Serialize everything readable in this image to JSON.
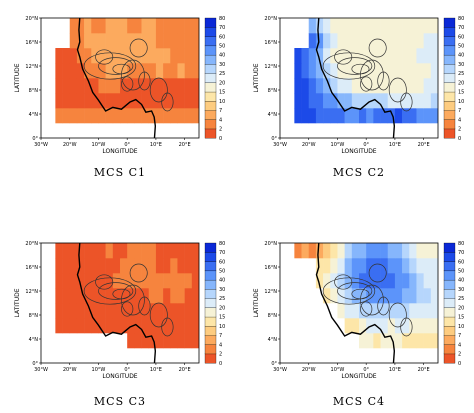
{
  "chart_data": [
    {
      "type": "heatmap",
      "title": "MCS C1",
      "xlabel": "LONGITUDE",
      "ylabel": "LATITUDE",
      "xlim": [
        -30,
        25
      ],
      "ylim": [
        0,
        20
      ],
      "x_ticks": [
        "30°W",
        "20°W",
        "10°W",
        "0°",
        "10°E",
        "20°E"
      ],
      "y_ticks": [
        "0°",
        "4°N",
        "8°N",
        "12°N",
        "16°N",
        "20°N"
      ],
      "colorbar_levels": [
        0,
        2,
        4,
        7,
        10,
        15,
        20,
        25,
        30,
        40,
        50,
        60,
        70,
        80
      ],
      "grid_lon0": -25,
      "grid_lat0": 2.5,
      "grid_dlon": 2.5,
      "grid_dlat": 2.5,
      "grid": [
        [
          11,
          11,
          11,
          11,
          11,
          11,
          11,
          11,
          11,
          11,
          11,
          11,
          11,
          11,
          11,
          11,
          11,
          11,
          11,
          11,
          11,
          11
        ],
        [
          12,
          12,
          12,
          12,
          12,
          12,
          12,
          12,
          12,
          12,
          12,
          12,
          12,
          12,
          12,
          12,
          12,
          12,
          12,
          12,
          12,
          12
        ],
        [
          12,
          12,
          12,
          12,
          12,
          12,
          11,
          11,
          11,
          12,
          12,
          12,
          12,
          12,
          12,
          12,
          12,
          12,
          12,
          12,
          12,
          12
        ],
        [
          12,
          12,
          12,
          12,
          11,
          11,
          11,
          10,
          10,
          10,
          11,
          11,
          11,
          11,
          10,
          11,
          11,
          10,
          11,
          11,
          11,
          11
        ],
        [
          12,
          12,
          12,
          11,
          11,
          10,
          10,
          10,
          10,
          10,
          10,
          10,
          10,
          10,
          10,
          10,
          11,
          11,
          11,
          11,
          11,
          11
        ],
        [
          null,
          null,
          11,
          11,
          10,
          10,
          10,
          10,
          10,
          10,
          10,
          10,
          10,
          10,
          11,
          11,
          11,
          11,
          11,
          11,
          11,
          11
        ],
        [
          null,
          null,
          11,
          11,
          10,
          11,
          11,
          10,
          10,
          10,
          11,
          11,
          10,
          10,
          11,
          11,
          11,
          11,
          11,
          11,
          11,
          11
        ]
      ]
    },
    {
      "type": "heatmap",
      "title": "MCS C2",
      "xlabel": "LONGITUDE",
      "ylabel": "LATITUDE",
      "xlim": [
        -30,
        25
      ],
      "ylim": [
        0,
        20
      ],
      "x_ticks": [
        "30°W",
        "20°W",
        "10°W",
        "0°",
        "10°E",
        "20°E"
      ],
      "y_ticks": [
        "0°",
        "4°N",
        "8°N",
        "12°N",
        "16°N",
        "20°N"
      ],
      "colorbar_levels": [
        0,
        2,
        4,
        7,
        10,
        15,
        20,
        25,
        30,
        40,
        50,
        60,
        70,
        80
      ],
      "grid_lon0": -25,
      "grid_lat0": 2.5,
      "grid_dlon": 2.5,
      "grid_dlat": 2.5,
      "grid": [
        [
          1,
          1,
          1,
          2,
          2,
          2,
          2,
          3,
          3,
          2,
          3,
          2,
          2,
          2,
          1,
          2,
          2,
          3,
          3,
          3,
          3,
          3
        ],
        [
          1,
          1,
          2,
          2,
          3,
          3,
          4,
          4,
          5,
          5,
          5,
          5,
          5,
          6,
          6,
          6,
          6,
          6,
          6,
          5,
          5,
          5
        ],
        [
          1,
          1,
          2,
          3,
          4,
          5,
          6,
          6,
          7,
          7,
          7,
          7,
          7,
          7,
          7,
          7,
          7,
          7,
          6,
          6,
          6,
          6
        ],
        [
          1,
          2,
          3,
          4,
          5,
          6,
          7,
          7,
          7,
          7,
          7,
          7,
          7,
          7,
          7,
          7,
          7,
          7,
          7,
          6,
          6,
          6
        ],
        [
          1,
          2,
          3,
          4,
          6,
          7,
          7,
          7,
          7,
          7,
          7,
          7,
          7,
          7,
          7,
          7,
          7,
          6,
          6,
          6,
          6,
          6
        ],
        [
          null,
          null,
          2,
          3,
          5,
          6,
          7,
          7,
          7,
          7,
          7,
          7,
          7,
          7,
          7,
          7,
          7,
          7,
          6,
          6,
          6,
          6
        ],
        [
          null,
          null,
          4,
          5,
          6,
          7,
          7,
          7,
          7,
          7,
          7,
          7,
          7,
          7,
          7,
          7,
          7,
          7,
          7,
          7,
          7,
          7
        ]
      ]
    },
    {
      "type": "heatmap",
      "title": "MCS C3",
      "xlabel": "LONGITUDE",
      "ylabel": "LATITUDE",
      "xlim": [
        -30,
        25
      ],
      "ylim": [
        0,
        20
      ],
      "x_ticks": [
        "30°W",
        "20°W",
        "10°W",
        "0°",
        "10°E",
        "20°E"
      ],
      "y_ticks": [
        "0°",
        "4°N",
        "8°N",
        "12°N",
        "16°N",
        "20°N"
      ],
      "colorbar_levels": [
        0,
        2,
        4,
        7,
        10,
        15,
        20,
        25,
        30,
        40,
        50,
        60,
        70,
        80
      ],
      "grid_lon0": -25,
      "grid_lat0": 2.5,
      "grid_dlon": 2.5,
      "grid_dlat": 2.5,
      "grid": [
        [
          null,
          null,
          null,
          null,
          null,
          null,
          null,
          null,
          null,
          null,
          13,
          13,
          13,
          13,
          13,
          13,
          13,
          13,
          13,
          13,
          13,
          13
        ],
        [
          13,
          13,
          13,
          13,
          13,
          13,
          13,
          13,
          13,
          13,
          13,
          13,
          13,
          13,
          13,
          13,
          13,
          13,
          13,
          13,
          13,
          13
        ],
        [
          13,
          13,
          13,
          13,
          13,
          13,
          13,
          12,
          12,
          12,
          12,
          12,
          12,
          12,
          12,
          13,
          12,
          12,
          12,
          13,
          13,
          13
        ],
        [
          13,
          13,
          13,
          13,
          12,
          12,
          12,
          12,
          12,
          12,
          12,
          12,
          12,
          11,
          11,
          12,
          11,
          11,
          12,
          12,
          12,
          12
        ],
        [
          13,
          13,
          13,
          12,
          12,
          12,
          12,
          12,
          11,
          11,
          11,
          11,
          11,
          11,
          11,
          11,
          11,
          11,
          11,
          12,
          12,
          12
        ],
        [
          13,
          13,
          13,
          13,
          12,
          12,
          12,
          12,
          12,
          11,
          11,
          11,
          11,
          11,
          12,
          12,
          11,
          12,
          12,
          12,
          12,
          12
        ],
        [
          13,
          13,
          13,
          13,
          12,
          12,
          12,
          11,
          12,
          12,
          11,
          11,
          11,
          11,
          12,
          12,
          12,
          12,
          12,
          12,
          12,
          12
        ]
      ]
    },
    {
      "type": "heatmap",
      "title": "MCS C4",
      "xlabel": "LONGITUDE",
      "ylabel": "LATITUDE",
      "xlim": [
        -30,
        25
      ],
      "ylim": [
        0,
        20
      ],
      "x_ticks": [
        "30°W",
        "20°W",
        "10°W",
        "0°",
        "10°E",
        "20°E"
      ],
      "y_ticks": [
        "0°",
        "4°N",
        "8°N",
        "12°N",
        "16°N",
        "20°N"
      ],
      "colorbar_levels": [
        0,
        2,
        4,
        7,
        10,
        15,
        20,
        25,
        30,
        40,
        50,
        60,
        70,
        80
      ],
      "grid_lon0": -25,
      "grid_lat0": 2.5,
      "grid_dlon": 2.5,
      "grid_dlat": 2.5,
      "grid": [
        [
          null,
          null,
          null,
          null,
          null,
          null,
          null,
          null,
          null,
          7,
          7,
          8,
          7,
          7,
          7,
          8,
          8,
          8,
          8,
          8,
          8,
          7
        ],
        [
          null,
          null,
          null,
          null,
          null,
          null,
          null,
          8,
          8,
          7,
          6,
          6,
          6,
          7,
          6,
          6,
          7,
          7,
          7,
          7,
          7,
          7
        ],
        [
          null,
          null,
          null,
          null,
          null,
          null,
          7,
          6,
          6,
          5,
          5,
          5,
          5,
          5,
          5,
          5,
          6,
          6,
          6,
          6,
          6,
          6
        ],
        [
          null,
          null,
          null,
          null,
          8,
          7,
          6,
          5,
          4,
          4,
          3,
          3,
          3,
          3,
          3,
          4,
          4,
          5,
          5,
          6,
          6,
          6
        ],
        [
          null,
          null,
          null,
          8,
          7,
          6,
          5,
          4,
          3,
          2,
          2,
          2,
          2,
          2,
          3,
          3,
          4,
          5,
          6,
          6,
          6,
          6
        ],
        [
          null,
          null,
          null,
          8,
          8,
          7,
          6,
          4,
          3,
          3,
          2,
          2,
          2,
          3,
          3,
          4,
          5,
          6,
          6,
          6,
          6,
          6
        ],
        [
          11,
          10,
          11,
          10,
          9,
          8,
          7,
          5,
          4,
          4,
          3,
          3,
          3,
          4,
          4,
          5,
          6,
          7,
          7,
          7,
          7,
          7
        ]
      ]
    }
  ],
  "colorbar_colors": [
    "#0a28d6",
    "#1c4ae8",
    "#3a6ef2",
    "#5c94fa",
    "#86b6fc",
    "#b6d6fc",
    "#dcecf8",
    "#f6f2d6",
    "#fde6a8",
    "#fdcc80",
    "#fcaa5e",
    "#f6843e",
    "#ec5428"
  ],
  "coast_color": "#000000",
  "contour_color": "#333333"
}
